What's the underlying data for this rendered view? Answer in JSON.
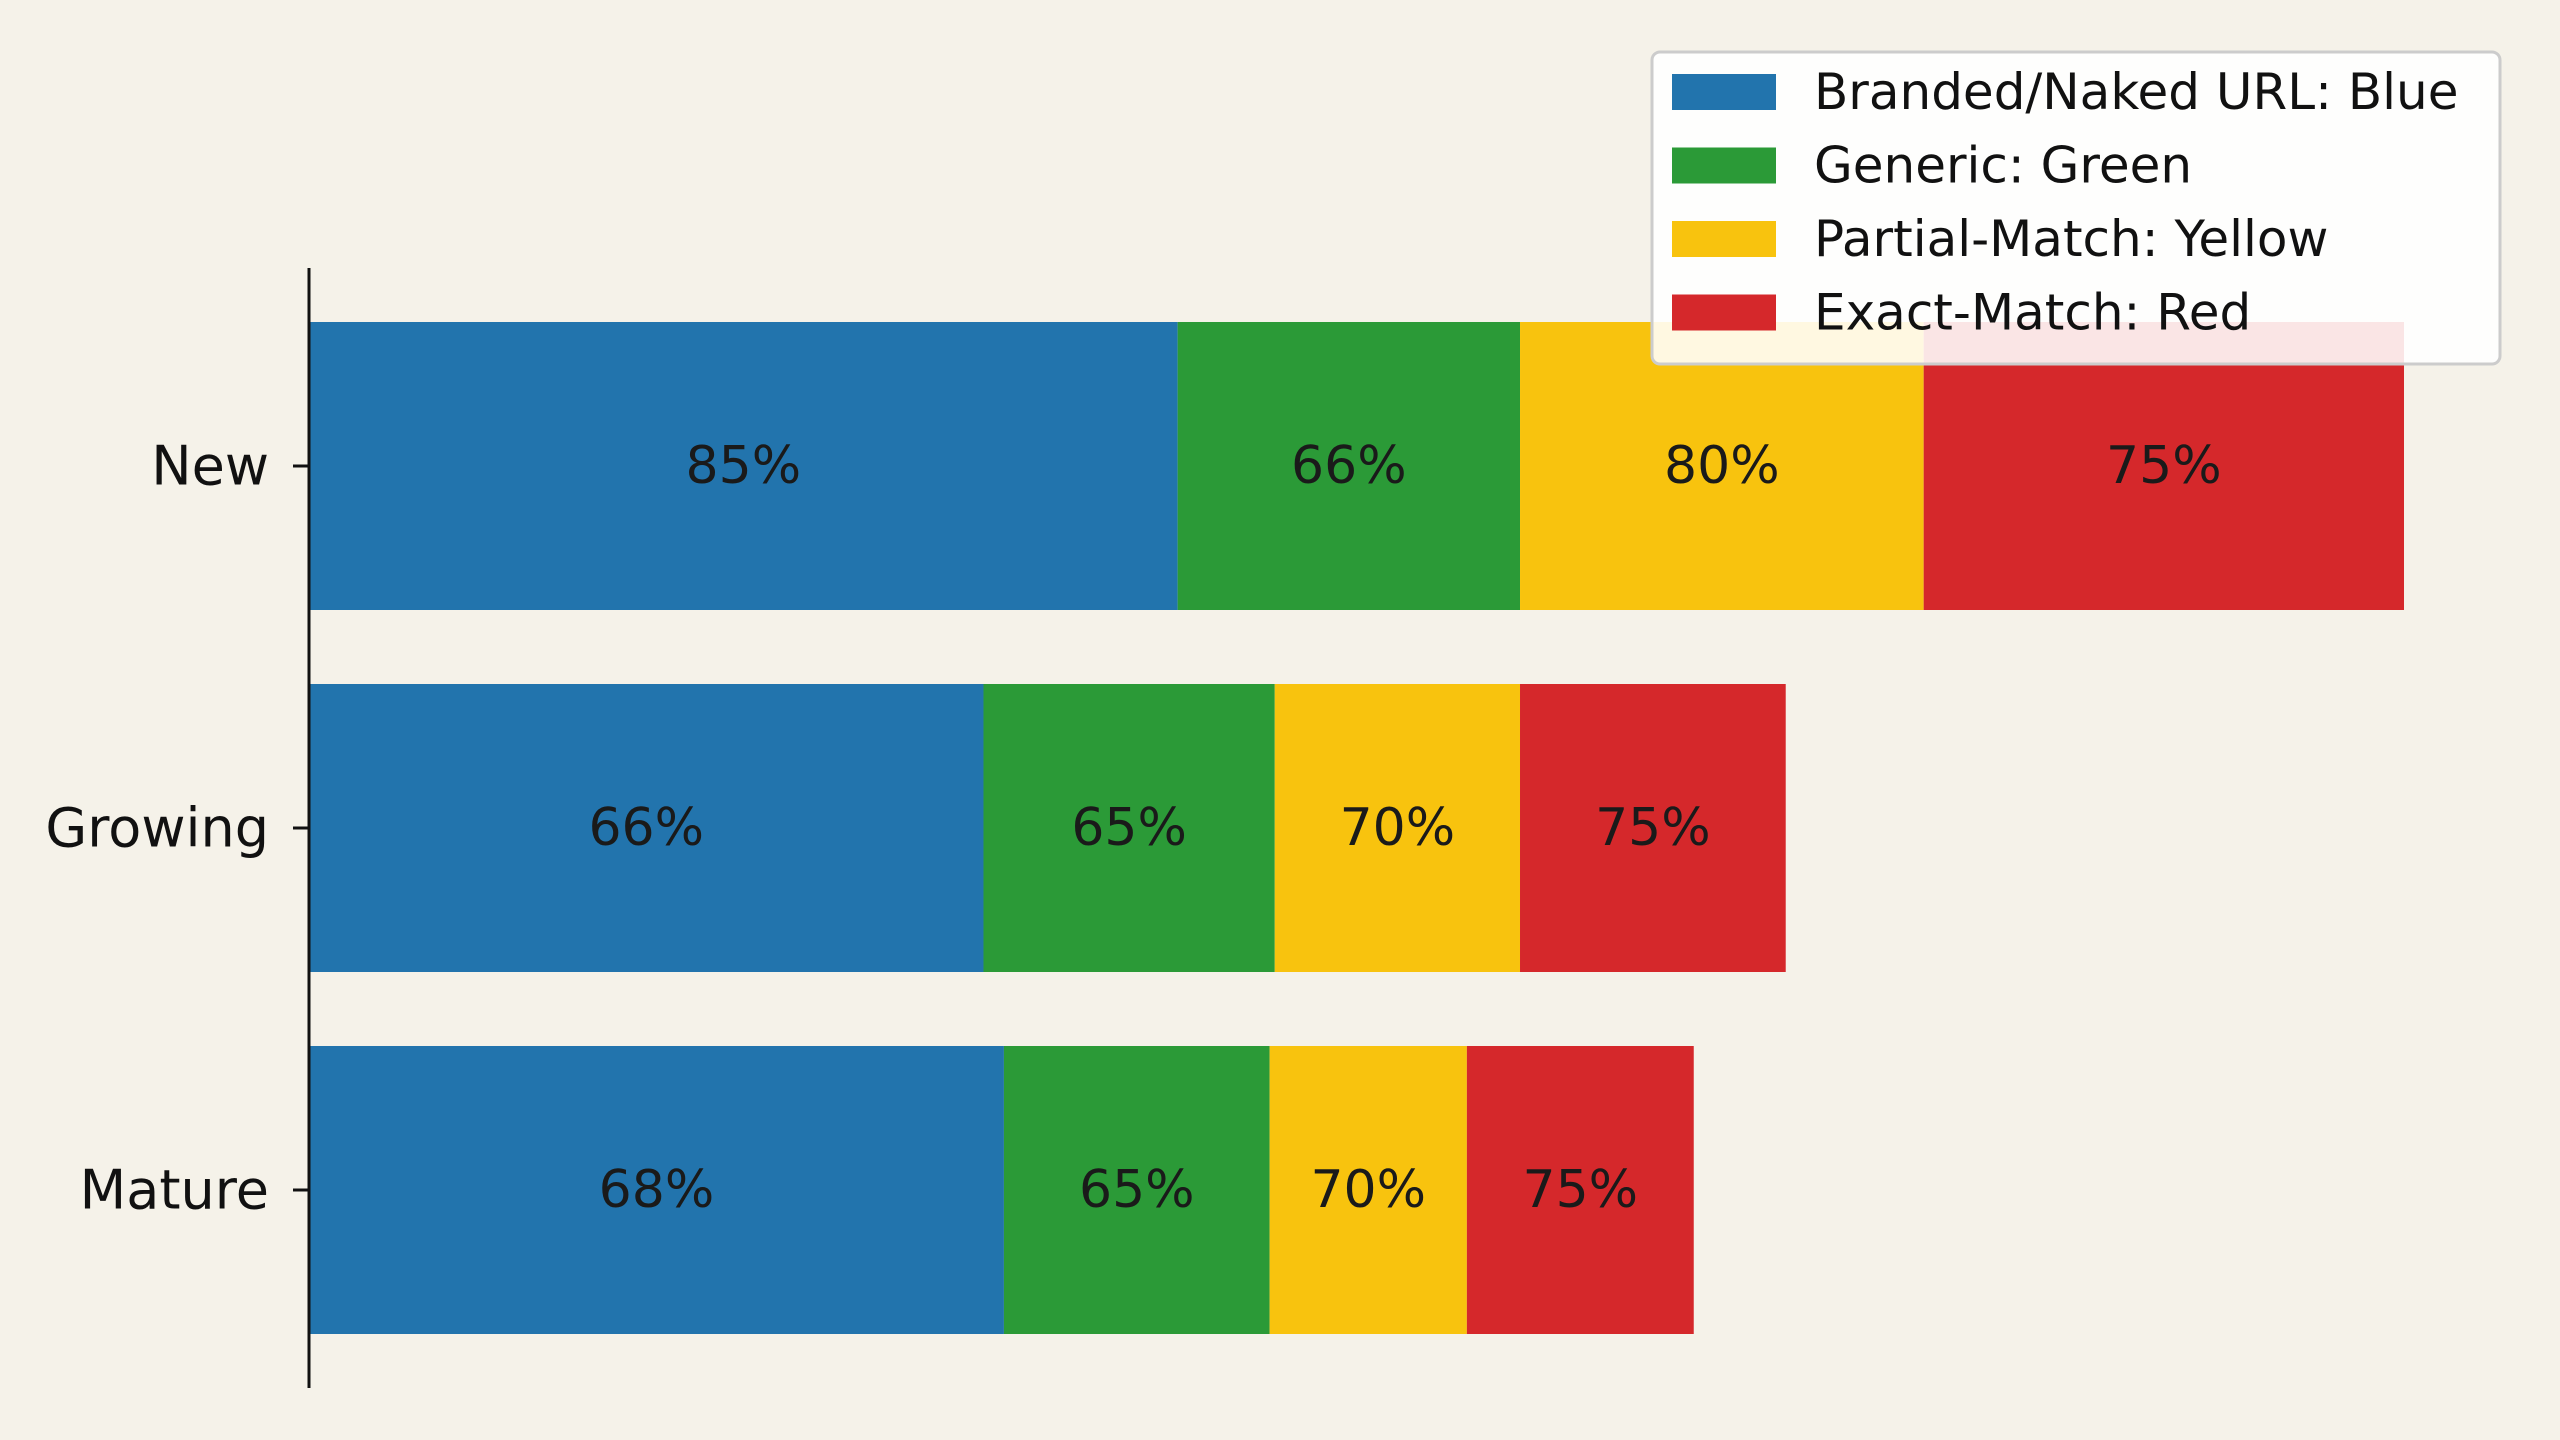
{
  "chart_data": {
    "type": "bar",
    "orientation": "horizontal",
    "stacked": true,
    "categories": [
      "New",
      "Growing",
      "Mature"
    ],
    "series": [
      {
        "name": "Branded/Naked URL: Blue",
        "color": "#2274ad",
        "values": [
          85,
          66,
          68
        ],
        "labels": [
          "85%",
          "66%",
          "68%"
        ]
      },
      {
        "name": "Generic: Green",
        "color": "#2b9a37",
        "values": [
          33.5,
          28.5,
          26
        ],
        "labels": [
          "66%",
          "65%",
          "65%"
        ]
      },
      {
        "name": "Partial-Match: Yellow",
        "color": "#f8c30e",
        "values": [
          39.5,
          24,
          19.3
        ],
        "labels": [
          "80%",
          "70%",
          "70%"
        ]
      },
      {
        "name": "Exact-Match: Red",
        "color": "#d5282b",
        "values": [
          47,
          26,
          22.2
        ],
        "labels": [
          "75%",
          "75%",
          "75%"
        ]
      }
    ],
    "xlim": [
      0,
      205
    ],
    "grid": false,
    "legend_position": "top-right",
    "title": "",
    "xlabel": "",
    "ylabel": ""
  }
}
